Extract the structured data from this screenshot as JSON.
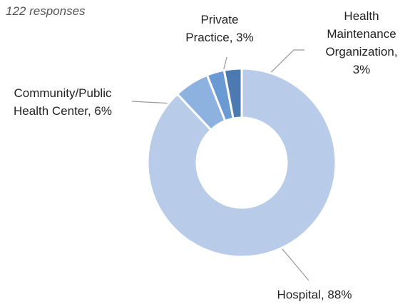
{
  "chart_data": {
    "type": "donut",
    "subtitle": "122 responses",
    "values": [
      88,
      6,
      3,
      3
    ],
    "value_labels": [
      "Hospital, 88%",
      "Community/Public\nHealth Center, 6%",
      "Private\nPractice, 3%",
      "Health\nMaintenance\nOrganization, 3%"
    ],
    "colors": [
      "#b8cce9",
      "#8db2e0",
      "#6a9ad4",
      "#4b79b0"
    ]
  }
}
